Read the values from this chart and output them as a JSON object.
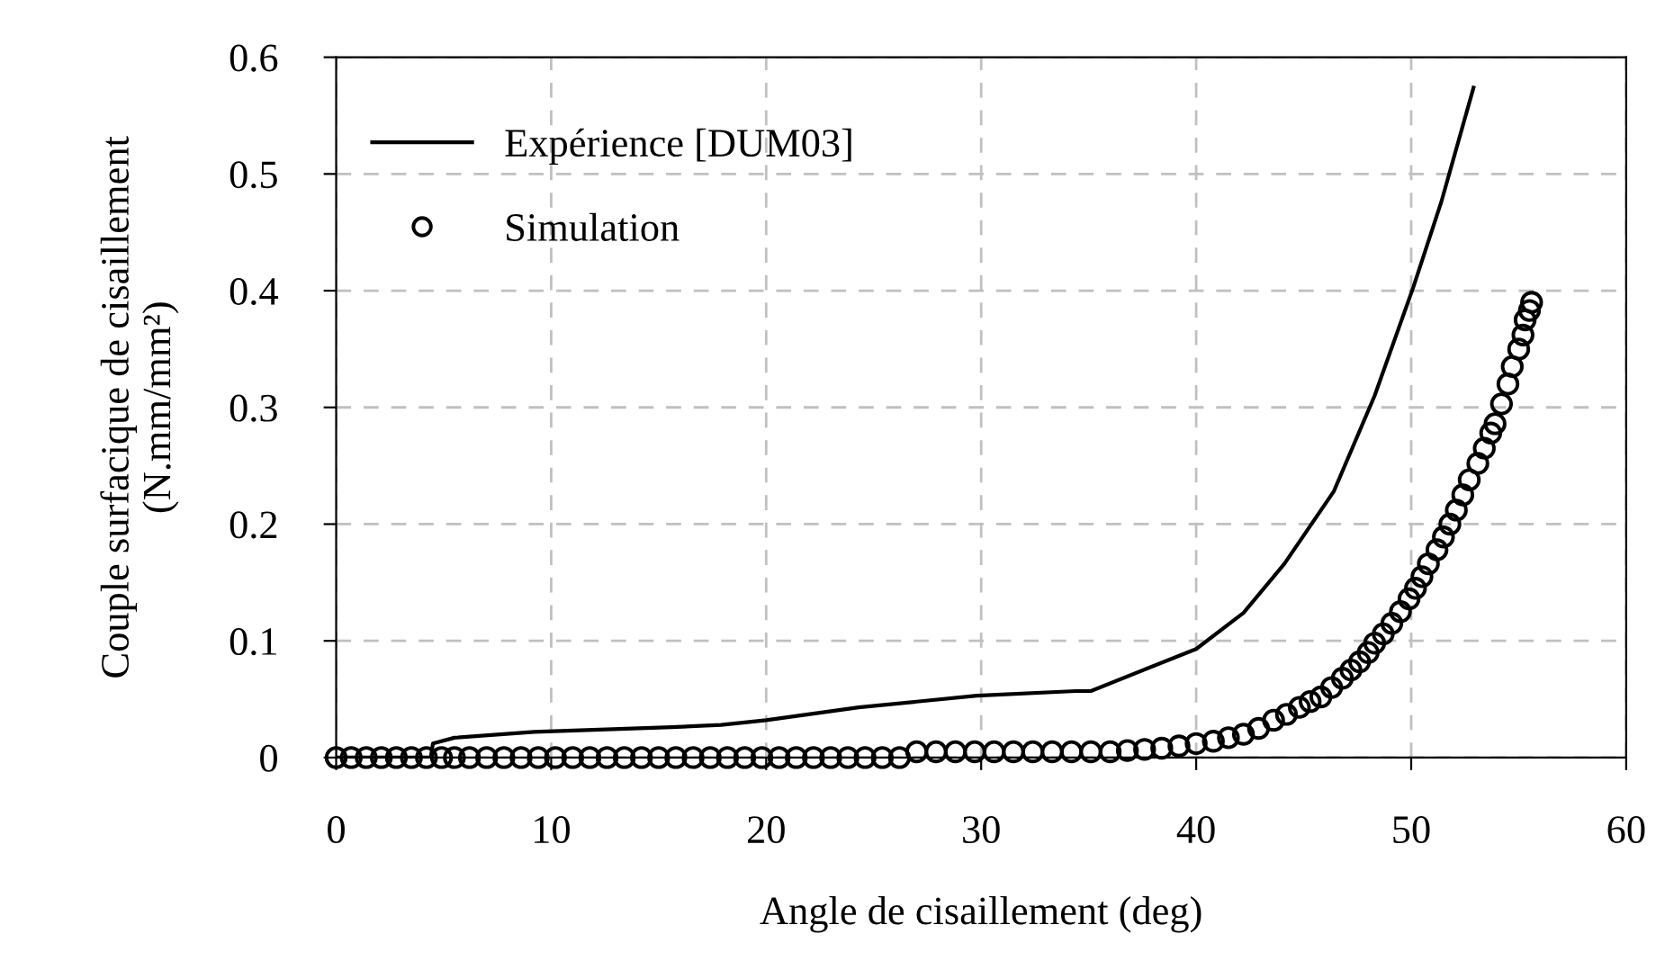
{
  "chart_data": {
    "type": "line",
    "xlabel": "Angle de cisaillement (deg)",
    "ylabel": "Couple surfacique de cisaillement\n(N.mm/mm²)",
    "xlim": [
      0,
      60
    ],
    "xticks": [
      0,
      10,
      20,
      30,
      40,
      50,
      60
    ],
    "ylim": [
      0,
      0.6
    ],
    "yticks": [
      0,
      0.1,
      0.2,
      0.3,
      0.4,
      0.5,
      0.6
    ],
    "grid": true,
    "legend": "top left",
    "series": [
      {
        "name": "Expérience [DUM03]",
        "color": "#000000",
        "marker": "none",
        "line_style": "solid",
        "x": [
          0,
          4.4,
          4.5,
          5.5,
          9.2,
          15.6,
          17.9,
          20,
          24.3,
          29.8,
          34.4,
          35.1,
          40,
          42.2,
          44.1,
          46.4,
          48.3,
          50.1,
          51.4,
          52.9
        ],
        "values": [
          0,
          0,
          0.012,
          0.017,
          0.022,
          0.026,
          0.028,
          0.032,
          0.043,
          0.053,
          0.057,
          0.057,
          0.093,
          0.124,
          0.166,
          0.228,
          0.31,
          0.403,
          0.476,
          0.574
        ]
      },
      {
        "name": "Simulation",
        "type": "scatter",
        "color": "#000000",
        "marker": "circle",
        "x": [
          0,
          0.7,
          1.4,
          2.1,
          2.8,
          3.5,
          4.2,
          4.9,
          5.5,
          6.2,
          7,
          7.8,
          8.6,
          9.4,
          10.2,
          11,
          11.8,
          12.6,
          13.4,
          14.2,
          15,
          15.8,
          16.6,
          17.4,
          18.2,
          19,
          19.8,
          20.6,
          21.4,
          22.2,
          23,
          23.8,
          24.6,
          25.4,
          26.2,
          27,
          27.9,
          28.8,
          29.7,
          30.6,
          31.5,
          32.4,
          33.3,
          34.2,
          35.1,
          36,
          36.8,
          37.6,
          38.4,
          39.2,
          40,
          40.8,
          41.5,
          42.2,
          42.9,
          43.6,
          44.2,
          44.8,
          45.3,
          45.8,
          46.3,
          46.8,
          47.2,
          47.6,
          48,
          48.3,
          48.7,
          49.1,
          49.5,
          49.9,
          50.2,
          50.5,
          50.8,
          51.2,
          51.5,
          51.8,
          52.1,
          52.4,
          52.7,
          53.1,
          53.4,
          53.7,
          53.9,
          54.2,
          54.5,
          54.7,
          55,
          55.2,
          55.3,
          55.5,
          55.6
        ],
        "values": [
          0,
          0,
          0,
          0,
          0,
          0,
          0,
          0,
          0,
          0,
          0,
          0,
          0,
          0,
          0,
          0,
          0,
          0,
          0,
          0,
          0,
          0,
          0,
          0,
          0,
          0,
          0,
          0,
          0,
          0,
          0,
          0,
          0,
          0,
          0,
          0.005,
          0.005,
          0.005,
          0.005,
          0.005,
          0.005,
          0.005,
          0.005,
          0.005,
          0.005,
          0.005,
          0.006,
          0.007,
          0.008,
          0.01,
          0.012,
          0.014,
          0.017,
          0.02,
          0.025,
          0.032,
          0.037,
          0.043,
          0.048,
          0.052,
          0.06,
          0.068,
          0.075,
          0.082,
          0.09,
          0.098,
          0.106,
          0.115,
          0.125,
          0.136,
          0.145,
          0.155,
          0.166,
          0.178,
          0.189,
          0.2,
          0.212,
          0.225,
          0.238,
          0.252,
          0.265,
          0.278,
          0.286,
          0.303,
          0.32,
          0.335,
          0.35,
          0.362,
          0.375,
          0.383,
          0.39
        ]
      }
    ]
  }
}
